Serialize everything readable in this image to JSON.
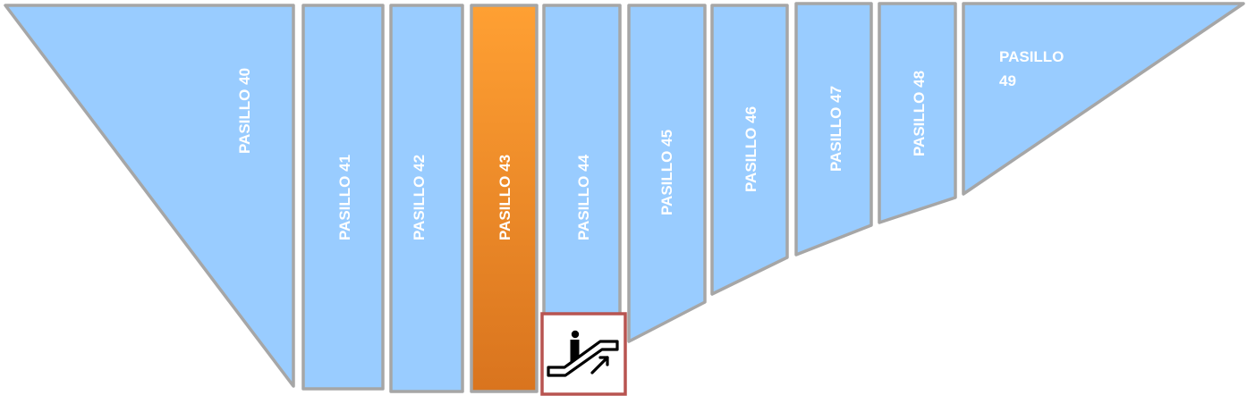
{
  "aisles": [
    {
      "id": "40",
      "label": "PASILLO 40",
      "selected": false
    },
    {
      "id": "41",
      "label": "PASILLO 41",
      "selected": false
    },
    {
      "id": "42",
      "label": "PASILLO 42",
      "selected": false
    },
    {
      "id": "43",
      "label": "PASILLO 43",
      "selected": true
    },
    {
      "id": "44",
      "label": "PASILLO 44",
      "selected": false
    },
    {
      "id": "45",
      "label": "PASILLO 45",
      "selected": false
    },
    {
      "id": "46",
      "label": "PASILLO 46",
      "selected": false
    },
    {
      "id": "47",
      "label": "PASILLO 47",
      "selected": false
    },
    {
      "id": "48",
      "label": "PASILLO 48",
      "selected": false
    },
    {
      "id": "49",
      "label_line1": "PASILLO",
      "label_line2": "49",
      "selected": false
    }
  ],
  "colors": {
    "aisle_fill": "#99ccff",
    "aisle_stroke": "#a6a6a6",
    "selected_fill_top": "#ffa033",
    "selected_fill_bottom": "#d9741e",
    "escalator_frame": "#b85450"
  },
  "escalator": {
    "icon": "escalator-up-icon"
  }
}
